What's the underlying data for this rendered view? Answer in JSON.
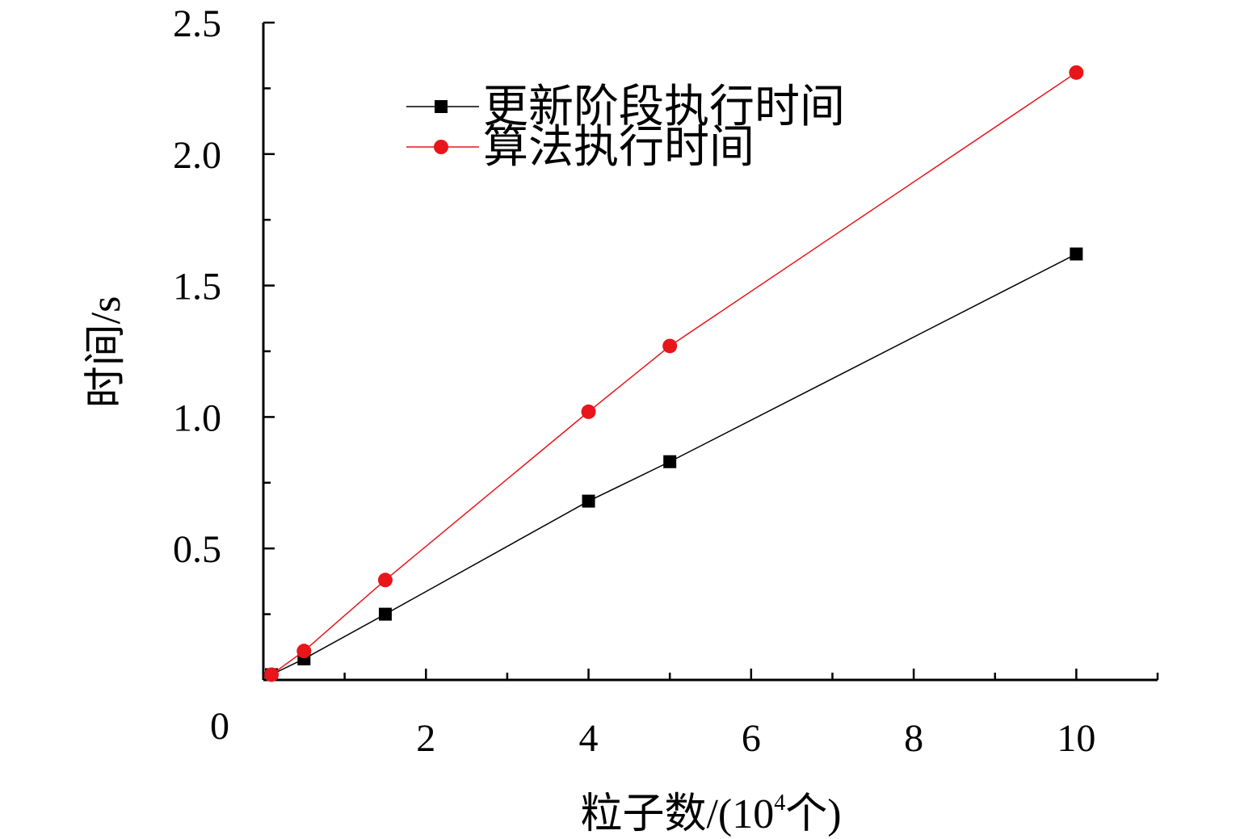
{
  "chart_data": {
    "type": "line",
    "title": "",
    "xlabel_main": "粒子数/(10",
    "xlabel_sup": "4",
    "xlabel_tail": "个)",
    "ylabel": "时间/s",
    "xlim": [
      0,
      11
    ],
    "ylim": [
      0,
      2.5
    ],
    "x_ticks": [
      2,
      4,
      6,
      8,
      10
    ],
    "x_tick_labels": [
      "2",
      "4",
      "6",
      "8",
      "10"
    ],
    "y_ticks": [
      0.5,
      1.0,
      1.5,
      2.0,
      2.5
    ],
    "y_tick_labels": [
      "0.5",
      "1.0",
      "1.5",
      "2.0",
      "2.5"
    ],
    "origin_label": "0",
    "legend_position": "top-left",
    "series": [
      {
        "name": "更新阶段执行时间",
        "color": "#000000",
        "marker": "square",
        "x": [
          0.1,
          0.5,
          1.5,
          4,
          5,
          10
        ],
        "y": [
          0.02,
          0.08,
          0.25,
          0.68,
          0.83,
          1.62
        ]
      },
      {
        "name": "算法执行时间",
        "color": "#e8161b",
        "marker": "circle",
        "x": [
          0.1,
          0.5,
          1.5,
          4,
          5,
          10
        ],
        "y": [
          0.02,
          0.11,
          0.38,
          1.02,
          1.27,
          2.31
        ]
      }
    ]
  }
}
